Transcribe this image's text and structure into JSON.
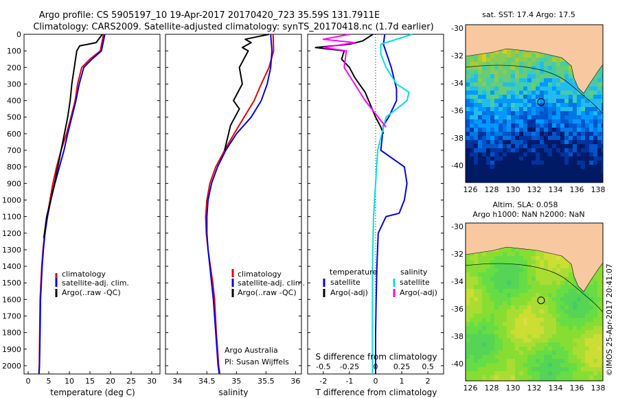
{
  "header": {
    "line1": "Argo profile: CS 5905197_10 19-Apr-2017 20170420_723 35.59S 131.7911E",
    "line2": "Climatology: CARS2009. Satellite-adjusted climatology: synTS_20170418.nc (1.7d earlier)"
  },
  "colors": {
    "climatology": "#e60000",
    "satellite": "#0000e6",
    "argo": "#000000",
    "sal_satellite": "#00e0e0",
    "sal_argo": "#ff00ff",
    "land": "#f8c8a0"
  },
  "depth_axis": {
    "ticks": [
      "0",
      "100",
      "200",
      "300",
      "400",
      "500",
      "600",
      "700",
      "800",
      "900",
      "1000",
      "1100",
      "1200",
      "1300",
      "1400",
      "1500",
      "1600",
      "1700",
      "1800",
      "1900",
      "2000"
    ]
  },
  "panel_temp": {
    "xlabel": "temperature (deg C)",
    "xticks": [
      "0",
      "5",
      "10",
      "15",
      "20",
      "25",
      "30"
    ],
    "legend": [
      "climatology",
      "satellite-adj. clim.",
      "Argo(..raw -QC)"
    ]
  },
  "panel_sal": {
    "xlabel": "salinity",
    "xticks": [
      "34",
      "34.5",
      "35",
      "35.5",
      "36"
    ],
    "legend": [
      "climatology",
      "satellite-adj. clim.",
      "Argo(..raw -QC)"
    ],
    "note1": "Argo Australia",
    "note2": "PI: Susan Wijffels"
  },
  "panel_diff": {
    "top_label": "S difference from climatology",
    "top_ticks": [
      "-0.5",
      "-0.25",
      "0",
      "0.25",
      "0.5"
    ],
    "xlabel": "T difference from climatology",
    "bottom_ticks": [
      "-2",
      "-1",
      "0",
      "1",
      "2"
    ],
    "legend_head_t": "temperature",
    "legend_head_s": "salinity",
    "legend_t": [
      "satellite",
      "Argo(-adj)"
    ],
    "legend_s": [
      "satellite",
      "Argo(-adj)"
    ]
  },
  "map_sst": {
    "title": "sat. SST: 17.4  Argo: 17.5"
  },
  "map_sla": {
    "title1": "Altim. SLA: 0.058",
    "title2": "Argo h1000: NaN  h2000: NaN"
  },
  "map_axes": {
    "xticks": [
      "126",
      "128",
      "130",
      "132",
      "134",
      "136",
      "138"
    ],
    "yticks": [
      "-30",
      "-32",
      "-34",
      "-36",
      "-38",
      "-40"
    ]
  },
  "credit": "©IMOS 25-Apr-2017 20:41:07",
  "chart_data": {
    "type": "line",
    "depth_ylim": [
      0,
      2050
    ],
    "temperature": {
      "xlim": [
        -1,
        32
      ],
      "series": [
        {
          "name": "climatology",
          "x": [
            18.3,
            17.5,
            15,
            13,
            12,
            11.4,
            10.4,
            9.3,
            8,
            6.9,
            6,
            5.3,
            4.6,
            4,
            3.6,
            3.3,
            3.1,
            2.9,
            2.8,
            2.7,
            2.6
          ],
          "y": [
            0,
            100,
            150,
            200,
            300,
            400,
            500,
            600,
            700,
            800,
            900,
            1000,
            1100,
            1200,
            1300,
            1400,
            1500,
            1600,
            1800,
            2000,
            2050
          ]
        },
        {
          "name": "satellite-adj. clim.",
          "x": [
            18.6,
            17.8,
            15.5,
            13.5,
            12.4,
            11.6,
            10.6,
            9.6,
            8.7,
            7.6,
            6.5,
            5.5,
            4.7,
            4.1,
            3.7,
            3.4,
            3.2,
            3,
            2.9,
            2.75,
            2.65
          ],
          "y": [
            0,
            100,
            150,
            200,
            300,
            400,
            500,
            600,
            700,
            800,
            900,
            1000,
            1100,
            1200,
            1300,
            1400,
            1500,
            1600,
            1800,
            2000,
            2050
          ]
        },
        {
          "name": "Argo(..raw -QC)",
          "x": [
            18,
            16.5,
            12.5,
            11.8,
            11.2,
            10.6,
            10.2,
            9.6,
            8.8,
            8,
            7.2,
            6.4,
            5.5,
            4.5,
            3.8
          ],
          "y": [
            0,
            50,
            70,
            100,
            200,
            300,
            400,
            500,
            600,
            700,
            800,
            900,
            1000,
            1100,
            1230
          ]
        }
      ]
    },
    "salinity": {
      "xlim": [
        33.8,
        36.1
      ],
      "series": [
        {
          "name": "climatology",
          "x": [
            35.62,
            35.63,
            35.55,
            35.42,
            35.3,
            35.13,
            34.96,
            34.8,
            34.65,
            34.55,
            34.5,
            34.48,
            34.49,
            34.52,
            34.56,
            34.6,
            34.63,
            34.66,
            34.7,
            34.72
          ],
          "y": [
            0,
            100,
            200,
            300,
            400,
            500,
            600,
            700,
            800,
            900,
            1000,
            1100,
            1200,
            1300,
            1400,
            1500,
            1600,
            1800,
            2000,
            2050
          ]
        },
        {
          "name": "satellite-adj. clim.",
          "x": [
            35.58,
            35.6,
            35.58,
            35.52,
            35.42,
            35.25,
            35,
            34.82,
            34.68,
            34.58,
            34.52,
            34.5,
            34.5,
            34.52,
            34.55,
            34.58,
            34.61,
            34.65,
            34.69,
            34.71
          ],
          "y": [
            0,
            100,
            200,
            300,
            400,
            500,
            600,
            700,
            800,
            900,
            1000,
            1100,
            1200,
            1300,
            1400,
            1500,
            1600,
            1800,
            2000,
            2050
          ]
        },
        {
          "name": "Argo(..raw -QC)",
          "x": [
            35.55,
            35.15,
            35.25,
            35.1,
            35.2,
            35.05,
            35.1,
            34.95,
            35.05,
            34.9,
            34.8
          ],
          "y": [
            0,
            30,
            50,
            80,
            100,
            200,
            300,
            400,
            450,
            550,
            700
          ]
        }
      ]
    },
    "differences": {
      "xlim_T": [
        -2.6,
        2.6
      ],
      "xlim_S": [
        -0.65,
        0.65
      ],
      "series": [
        {
          "name": "temperature satellite",
          "x": [
            0.35,
            0.3,
            0.6,
            0.8,
            0.8,
            0.5,
            0.3,
            0.2,
            1.1,
            1.2,
            1.1,
            0.9,
            0.4,
            0.1,
            0.05,
            0.02,
            0,
            0,
            0
          ],
          "y": [
            0,
            60,
            200,
            330,
            400,
            500,
            550,
            700,
            800,
            900,
            1000,
            1080,
            1100,
            1200,
            1400,
            1600,
            1800,
            2000,
            2050
          ]
        },
        {
          "name": "temperature Argo(-adj)",
          "x": [
            -0.1,
            -0.5,
            -1,
            -2.3,
            -1.2,
            -1.3,
            -1,
            -0.8,
            -0.4,
            0,
            0.2,
            0.3
          ],
          "y": [
            0,
            40,
            60,
            80,
            100,
            150,
            200,
            260,
            350,
            500,
            560,
            600
          ]
        },
        {
          "name": "salinity satellite",
          "x": [
            0.35,
            0.05,
            0.05,
            0.1,
            0.2,
            0.32,
            0.3,
            0.2,
            0.1,
            0.02,
            0,
            -0.02,
            -0.03,
            -0.03,
            -0.03
          ],
          "y": [
            0,
            60,
            120,
            200,
            300,
            350,
            400,
            450,
            500,
            700,
            900,
            1100,
            1400,
            1800,
            2050
          ]
        },
        {
          "name": "salinity Argo(-adj)",
          "x": [
            -0.25,
            -0.5,
            -0.2,
            -0.5,
            -0.28,
            -0.3,
            -0.1,
            0.1
          ],
          "y": [
            0,
            30,
            50,
            80,
            100,
            200,
            400,
            560
          ]
        }
      ]
    }
  }
}
